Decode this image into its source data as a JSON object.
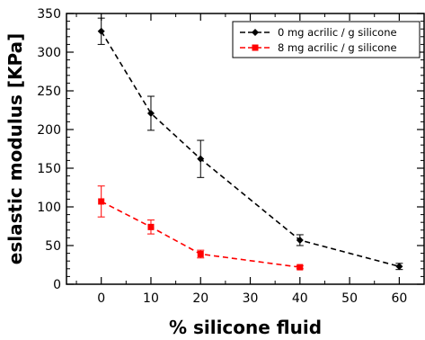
{
  "chart_data": {
    "type": "line",
    "title": "",
    "xlabel": "% silicone fluid",
    "ylabel": "eslastic modulus [KPa]",
    "xlim": [
      -7,
      65
    ],
    "ylim": [
      0,
      350
    ],
    "x_ticks": [
      0,
      10,
      20,
      30,
      40,
      50,
      60
    ],
    "y_ticks": [
      0,
      50,
      100,
      150,
      200,
      250,
      300,
      350
    ],
    "grid": false,
    "legend_position": "top-right",
    "series": [
      {
        "name": "0 mg acrilic / g silicone",
        "color": "#000000",
        "marker": "diamond",
        "line_style": "dashed",
        "x": [
          0,
          10,
          20,
          40,
          60
        ],
        "y": [
          327,
          221,
          162,
          57,
          23
        ],
        "error": [
          17,
          22,
          24,
          7,
          4
        ]
      },
      {
        "name": "8 mg acrilic / g silicone",
        "color": "#ff0000",
        "marker": "square",
        "line_style": "dashed",
        "x": [
          0,
          10,
          20,
          40
        ],
        "y": [
          107,
          74,
          39,
          22
        ],
        "error": [
          20,
          9,
          5,
          2
        ]
      }
    ]
  }
}
